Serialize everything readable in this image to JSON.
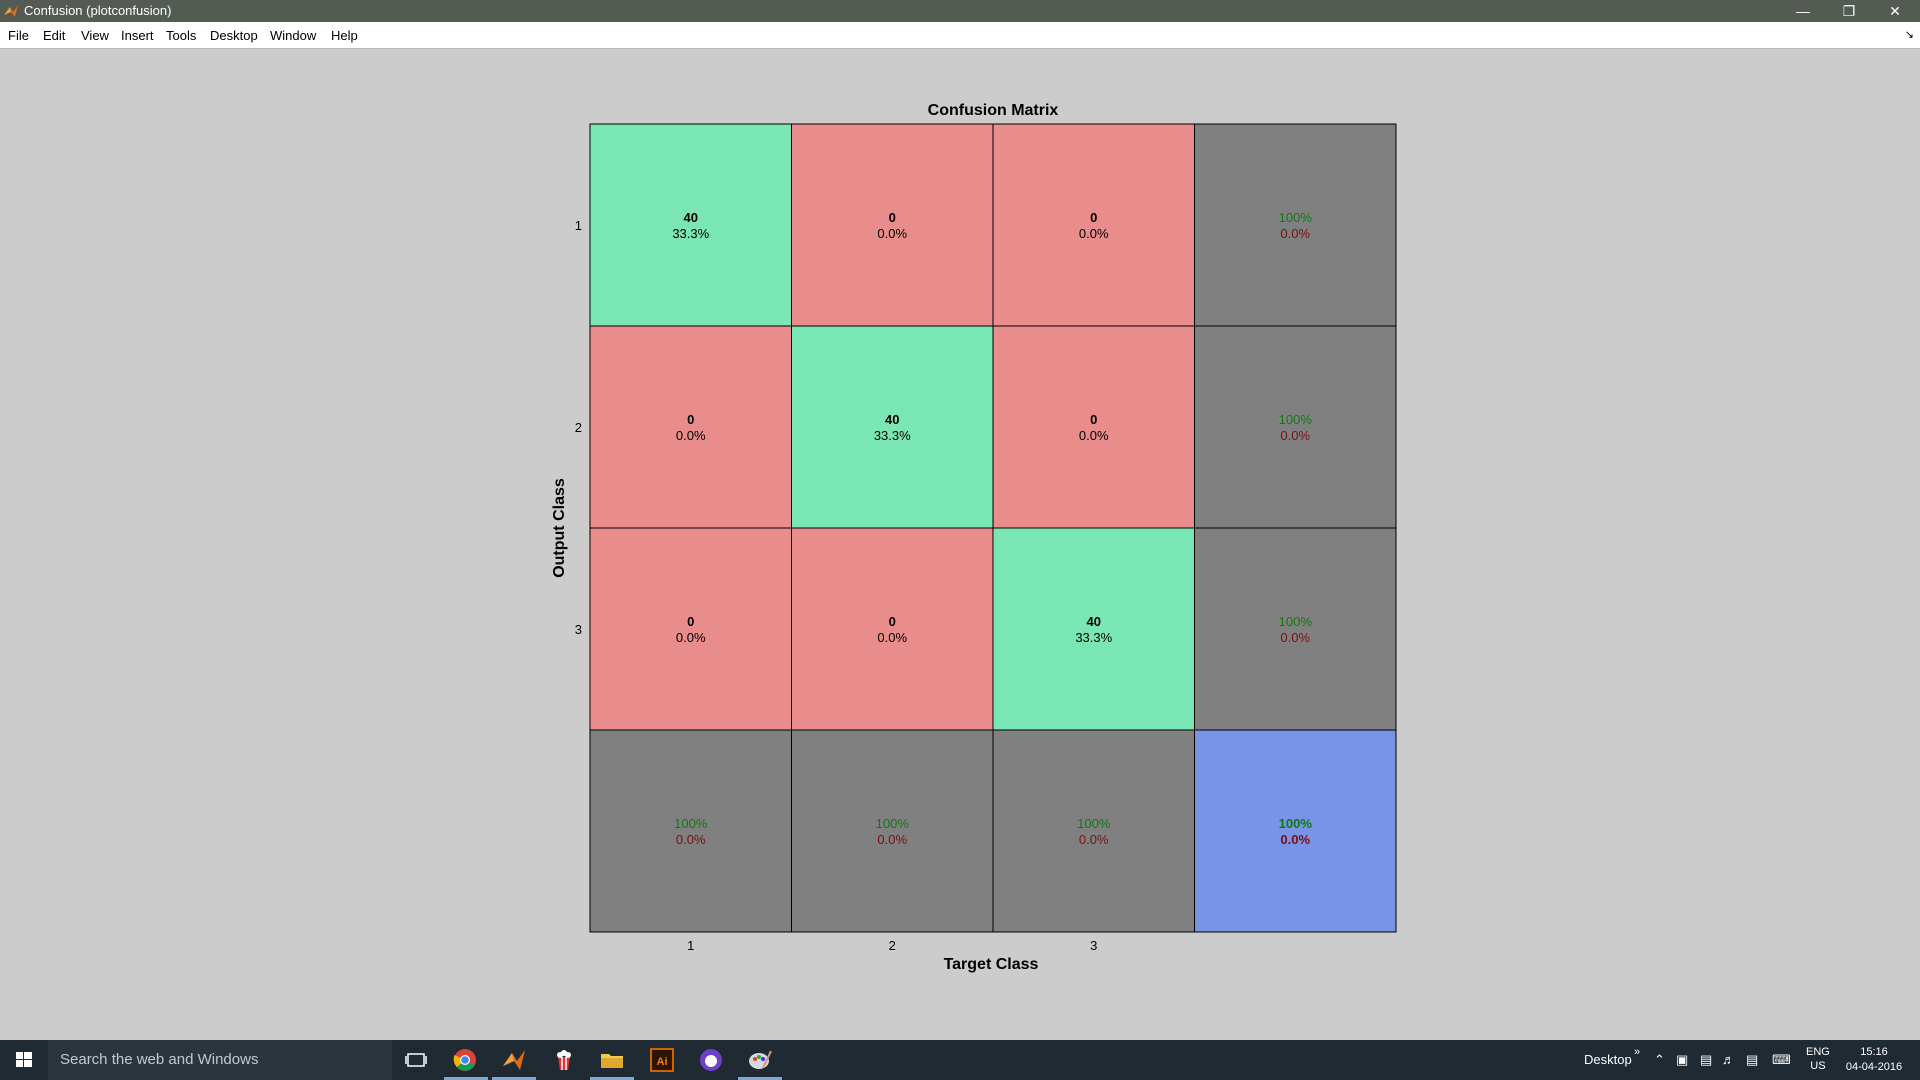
{
  "window": {
    "title": "Confusion (plotconfusion)"
  },
  "menu": [
    "File",
    "Edit",
    "View",
    "Insert",
    "Tools",
    "Desktop",
    "Window",
    "Help"
  ],
  "colors": {
    "correct": "#79e6b4",
    "incorrect": "#e88c8c",
    "summary": "#808080",
    "overall": "#7994e6",
    "pct_green": "#107810",
    "pct_red": "#781010"
  },
  "chart_data": {
    "type": "heatmap",
    "title": "Confusion Matrix",
    "xlabel": "Target Class",
    "ylabel": "Output Class",
    "x_ticks": [
      "1",
      "2",
      "3"
    ],
    "y_ticks": [
      "1",
      "2",
      "3"
    ],
    "matrix": [
      [
        {
          "count": "40",
          "pct": "33.3%"
        },
        {
          "count": "0",
          "pct": "0.0%"
        },
        {
          "count": "0",
          "pct": "0.0%"
        }
      ],
      [
        {
          "count": "0",
          "pct": "0.0%"
        },
        {
          "count": "40",
          "pct": "33.3%"
        },
        {
          "count": "0",
          "pct": "0.0%"
        }
      ],
      [
        {
          "count": "0",
          "pct": "0.0%"
        },
        {
          "count": "0",
          "pct": "0.0%"
        },
        {
          "count": "40",
          "pct": "33.3%"
        }
      ]
    ],
    "row_summary": [
      {
        "correct": "100%",
        "error": "0.0%"
      },
      {
        "correct": "100%",
        "error": "0.0%"
      },
      {
        "correct": "100%",
        "error": "0.0%"
      }
    ],
    "col_summary": [
      {
        "correct": "100%",
        "error": "0.0%"
      },
      {
        "correct": "100%",
        "error": "0.0%"
      },
      {
        "correct": "100%",
        "error": "0.0%"
      }
    ],
    "overall": {
      "correct": "100%",
      "error": "0.0%"
    }
  },
  "taskbar": {
    "search_placeholder": "Search the web and Windows",
    "desktop_label": "Desktop",
    "lang_top": "ENG",
    "lang_bottom": "US",
    "time": "15:16",
    "date": "04-04-2016"
  }
}
